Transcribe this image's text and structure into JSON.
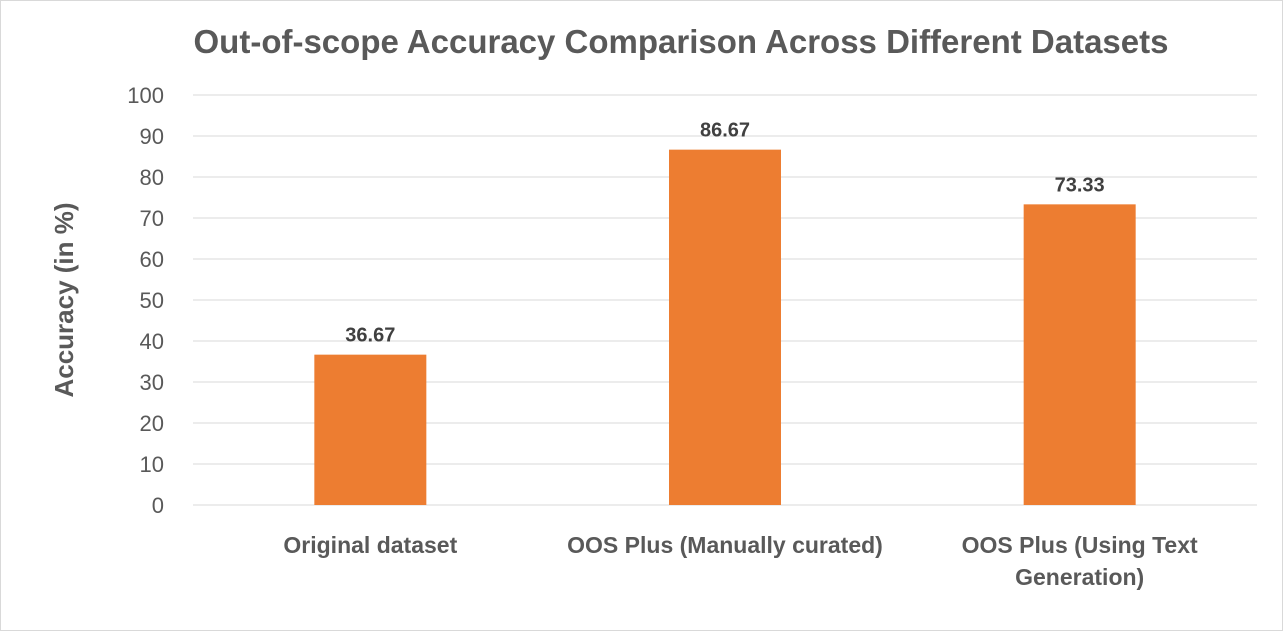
{
  "chart_data": {
    "type": "bar",
    "title": "Out-of-scope Accuracy Comparison Across Different Datasets",
    "xlabel": "",
    "ylabel": "Accuracy (in %)",
    "categories": [
      [
        "Original dataset"
      ],
      [
        "OOS Plus (Manually curated)"
      ],
      [
        "OOS Plus (Using Text",
        "Generation)"
      ]
    ],
    "values": [
      36.67,
      86.67,
      73.33
    ],
    "data_labels": [
      "36.67",
      "86.67",
      "73.33"
    ],
    "ylim": [
      0,
      100
    ],
    "yticks": [
      0,
      10,
      20,
      30,
      40,
      50,
      60,
      70,
      80,
      90,
      100
    ],
    "grid": true,
    "legend": "none",
    "colors": {
      "bar": "#ED7D31",
      "grid": "#D9D9D9",
      "text": "#595959"
    }
  }
}
